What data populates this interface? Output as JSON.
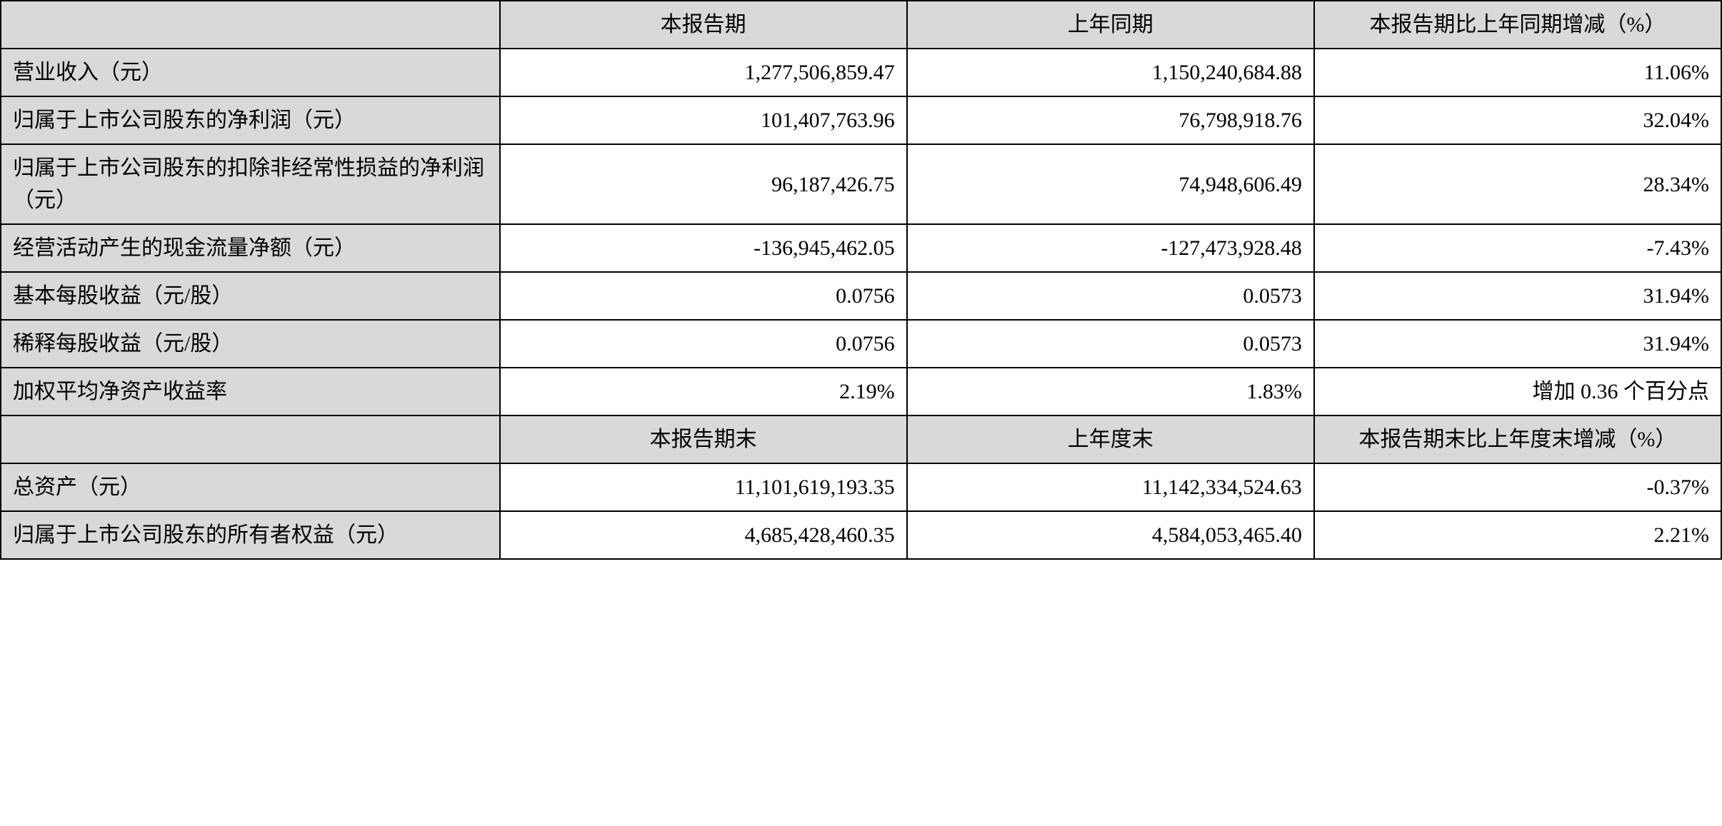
{
  "table": {
    "type": "table",
    "background_color": "#ffffff",
    "header_bg_color": "#d9d9d9",
    "border_color": "#000000",
    "font_size": 30,
    "header1": {
      "blank": "",
      "col1": "本报告期",
      "col2": "上年同期",
      "col3": "本报告期比上年同期增减（%）"
    },
    "rows1": [
      {
        "label": "营业收入（元）",
        "v1": "1,277,506,859.47",
        "v2": "1,150,240,684.88",
        "v3": "11.06%"
      },
      {
        "label": "归属于上市公司股东的净利润（元）",
        "v1": "101,407,763.96",
        "v2": "76,798,918.76",
        "v3": "32.04%"
      },
      {
        "label": "归属于上市公司股东的扣除非经常性损益的净利润（元）",
        "v1": "96,187,426.75",
        "v2": "74,948,606.49",
        "v3": "28.34%"
      },
      {
        "label": "经营活动产生的现金流量净额（元）",
        "v1": "-136,945,462.05",
        "v2": "-127,473,928.48",
        "v3": "-7.43%"
      },
      {
        "label": "基本每股收益（元/股）",
        "v1": "0.0756",
        "v2": "0.0573",
        "v3": "31.94%"
      },
      {
        "label": "稀释每股收益（元/股）",
        "v1": "0.0756",
        "v2": "0.0573",
        "v3": "31.94%"
      },
      {
        "label": "加权平均净资产收益率",
        "v1": "2.19%",
        "v2": "1.83%",
        "v3": "增加 0.36 个百分点"
      }
    ],
    "header2": {
      "blank": "",
      "col1": "本报告期末",
      "col2": "上年度末",
      "col3": "本报告期末比上年度末增减（%）"
    },
    "rows2": [
      {
        "label": "总资产（元）",
        "v1": "11,101,619,193.35",
        "v2": "11,142,334,524.63",
        "v3": "-0.37%"
      },
      {
        "label": "归属于上市公司股东的所有者权益（元）",
        "v1": "4,685,428,460.35",
        "v2": "4,584,053,465.40",
        "v3": "2.21%"
      }
    ]
  }
}
